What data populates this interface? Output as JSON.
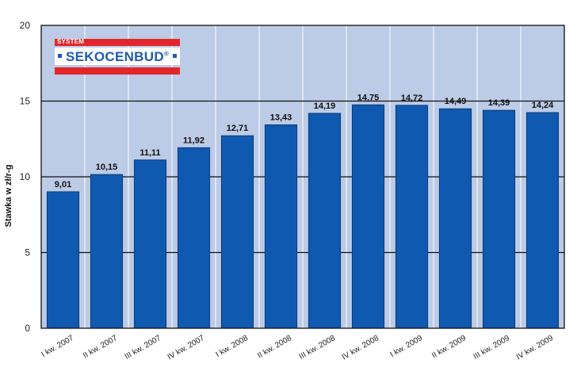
{
  "chart_data": {
    "type": "bar",
    "title": "",
    "xlabel": "",
    "ylabel": "Stawka w zł/r-g",
    "ylim": [
      0,
      20
    ],
    "yticks": [
      0,
      5,
      10,
      15,
      20
    ],
    "grid": true,
    "categories": [
      "I kw. 2007",
      "II kw. 2007",
      "III kw. 2007",
      "IV kw. 2007",
      "I kw. 2008",
      "II kw. 2008",
      "III kw. 2008",
      "IV kw. 2008",
      "I kw. 2009",
      "II kw. 2009",
      "III kw. 2009",
      "IV kw. 2009"
    ],
    "values": [
      9.01,
      10.15,
      11.11,
      11.92,
      12.71,
      13.43,
      14.19,
      14.75,
      14.72,
      14.49,
      14.39,
      14.24
    ],
    "data_labels": [
      "9,01",
      "10,15",
      "11,11",
      "11,92",
      "12,71",
      "13,43",
      "14,19",
      "14,75",
      "14,72",
      "14,49",
      "14,39",
      "14,24"
    ],
    "colors": {
      "bar": "#1059b0",
      "bar_edge": "#0b3a78",
      "plot_bg": "#bccbe6",
      "grid": "#111111"
    }
  },
  "logo": {
    "top_text": "SYSTEM",
    "name": "SEKOCENBUD",
    "reg": "®"
  }
}
